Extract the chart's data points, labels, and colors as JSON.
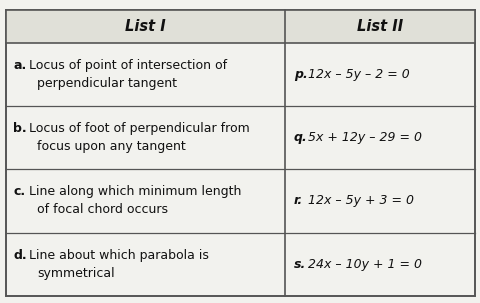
{
  "header": [
    "List I",
    "List II"
  ],
  "rows": [
    {
      "left_label": "a.",
      "left_text1": "Locus of point of intersection of",
      "left_text2": "perpendicular tangent",
      "right_label": "p.",
      "right_text": "12x – 5y – 2 = 0"
    },
    {
      "left_label": "b.",
      "left_text1": "Locus of foot of perpendicular from",
      "left_text2": "focus upon any tangent",
      "right_label": "q.",
      "right_text": "5x + 12y – 29 = 0"
    },
    {
      "left_label": "c.",
      "left_text1": "Line along which minimum length",
      "left_text2": "of focal chord occurs",
      "right_label": "r.",
      "right_text": "12x – 5y + 3 = 0"
    },
    {
      "left_label": "d.",
      "left_text1": "Line about which parabola is",
      "left_text2": "symmetrical",
      "right_label": "s.",
      "right_text": "24x – 10y + 1 = 0"
    }
  ],
  "bg_color": "#f2f2ee",
  "header_bg": "#e0e0d8",
  "line_color": "#555555",
  "text_color": "#111111",
  "header_fontsize": 10.5,
  "body_fontsize": 9.0,
  "col_split": 0.595
}
